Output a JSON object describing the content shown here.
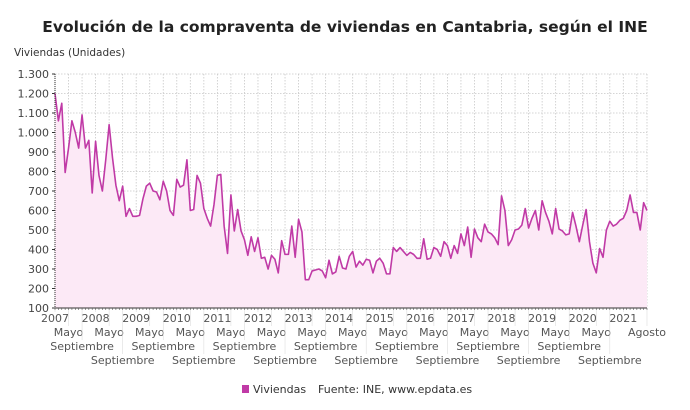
{
  "chart_data": {
    "type": "area",
    "title": "Evolución de la compraventa de viviendas en Cantabria, según el INE",
    "ylabel": "Viviendas (Unidades)",
    "xlabel": "",
    "ylim": [
      100,
      1300
    ],
    "yticks": [
      100,
      200,
      300,
      400,
      500,
      600,
      700,
      800,
      900,
      1000,
      1100,
      1200,
      1300
    ],
    "ytick_labels": [
      "100",
      "200",
      "300",
      "400",
      "500",
      "600",
      "700",
      "800",
      "900",
      "1.000",
      "1.100",
      "1.200",
      "1.300"
    ],
    "x_start": "2007-01",
    "x_end": "2021-08",
    "frequency": "monthly",
    "xtick_labels": [
      {
        "month": "2007-01",
        "label": "2007"
      },
      {
        "month": "2007-05",
        "label": "Mayo"
      },
      {
        "month": "2007-09",
        "label": "Septiembre"
      },
      {
        "month": "2008-01",
        "label": "2008"
      },
      {
        "month": "2008-05",
        "label": "Mayo"
      },
      {
        "month": "2008-09",
        "label": "Septiembre"
      },
      {
        "month": "2009-01",
        "label": "2009"
      },
      {
        "month": "2009-05",
        "label": "Mayo"
      },
      {
        "month": "2009-09",
        "label": "Septiembre"
      },
      {
        "month": "2010-01",
        "label": "2010"
      },
      {
        "month": "2010-05",
        "label": "Mayo"
      },
      {
        "month": "2010-09",
        "label": "Septiembre"
      },
      {
        "month": "2011-01",
        "label": "2011"
      },
      {
        "month": "2011-05",
        "label": "Mayo"
      },
      {
        "month": "2011-09",
        "label": "Septiembre"
      },
      {
        "month": "2012-01",
        "label": "2012"
      },
      {
        "month": "2012-05",
        "label": "Mayo"
      },
      {
        "month": "2012-09",
        "label": "Septiembre"
      },
      {
        "month": "2013-01",
        "label": "2013"
      },
      {
        "month": "2013-05",
        "label": "Mayo"
      },
      {
        "month": "2013-09",
        "label": "Septiembre"
      },
      {
        "month": "2014-01",
        "label": "2014"
      },
      {
        "month": "2014-05",
        "label": "Mayo"
      },
      {
        "month": "2014-09",
        "label": "Septiembre"
      },
      {
        "month": "2015-01",
        "label": "2015"
      },
      {
        "month": "2015-05",
        "label": "Mayo"
      },
      {
        "month": "2015-09",
        "label": "Septiembre"
      },
      {
        "month": "2016-01",
        "label": "2016"
      },
      {
        "month": "2016-05",
        "label": "Mayo"
      },
      {
        "month": "2016-09",
        "label": "Septiembre"
      },
      {
        "month": "2017-01",
        "label": "2017"
      },
      {
        "month": "2017-05",
        "label": "Mayo"
      },
      {
        "month": "2017-09",
        "label": "Septiembre"
      },
      {
        "month": "2018-01",
        "label": "2018"
      },
      {
        "month": "2018-05",
        "label": "Mayo"
      },
      {
        "month": "2018-09",
        "label": "Septiembre"
      },
      {
        "month": "2019-01",
        "label": "2019"
      },
      {
        "month": "2019-05",
        "label": "Mayo"
      },
      {
        "month": "2019-09",
        "label": "Septiembre"
      },
      {
        "month": "2020-01",
        "label": "2020"
      },
      {
        "month": "2020-05",
        "label": "Mayo"
      },
      {
        "month": "2020-09",
        "label": "Septiembre"
      },
      {
        "month": "2021-01",
        "label": "2021"
      },
      {
        "month": "2021-08",
        "label": "Agosto"
      }
    ],
    "grid": true,
    "legend_position": "bottom",
    "source": "Fuente: INE, www.epdata.es",
    "series": [
      {
        "name": "Viviendas",
        "color": "#c03aa6",
        "fill": "#fce9f6",
        "values": [
          1200,
          1060,
          1150,
          795,
          920,
          1060,
          1000,
          920,
          1090,
          920,
          960,
          690,
          955,
          780,
          700,
          860,
          1040,
          870,
          730,
          650,
          725,
          570,
          610,
          570,
          570,
          575,
          660,
          725,
          740,
          700,
          695,
          655,
          750,
          700,
          600,
          575,
          760,
          720,
          730,
          860,
          600,
          605,
          780,
          740,
          610,
          560,
          520,
          630,
          780,
          785,
          520,
          380,
          680,
          495,
          605,
          495,
          450,
          370,
          465,
          390,
          460,
          355,
          360,
          300,
          370,
          350,
          280,
          445,
          375,
          375,
          520,
          360,
          555,
          490,
          245,
          245,
          290,
          295,
          300,
          290,
          255,
          345,
          275,
          285,
          365,
          305,
          300,
          365,
          390,
          310,
          340,
          320,
          350,
          345,
          280,
          340,
          355,
          330,
          275,
          275,
          410,
          390,
          410,
          390,
          370,
          385,
          375,
          355,
          355,
          455,
          350,
          355,
          410,
          400,
          365,
          440,
          420,
          355,
          420,
          380,
          480,
          420,
          515,
          360,
          505,
          460,
          440,
          530,
          490,
          480,
          460,
          425,
          675,
          600,
          420,
          450,
          500,
          505,
          525,
          610,
          510,
          560,
          600,
          500,
          650,
          590,
          545,
          480,
          610,
          505,
          495,
          475,
          480,
          590,
          520,
          440,
          525,
          605,
          440,
          330,
          280,
          405,
          360,
          500,
          545,
          520,
          530,
          550,
          560,
          600,
          680,
          590,
          590,
          500,
          640,
          600
        ]
      }
    ]
  }
}
